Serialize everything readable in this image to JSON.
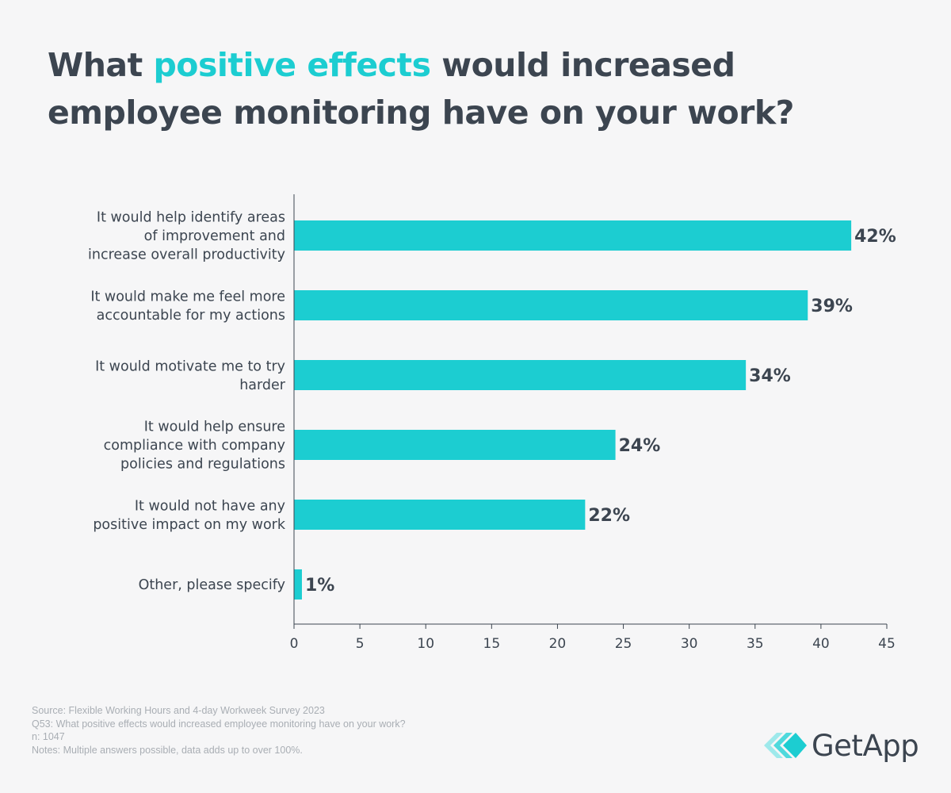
{
  "header": {
    "title_part1": "What ",
    "title_accent": "positive effects",
    "title_part2": " would increased employee monitoring have on your work?"
  },
  "chart_data": {
    "type": "bar",
    "orientation": "horizontal",
    "title": "What positive effects would increased employee monitoring have on your work?",
    "categories": [
      "It would help identify areas of improvement and increase overall productivity",
      "It would make me feel more accountable for my actions",
      "It would motivate me to try harder",
      "It would help ensure compliance with company policies and regulations",
      "It would not have any positive impact on my work",
      "Other, please specify"
    ],
    "category_lines": [
      [
        "It would help identify areas",
        "of improvement and",
        "increase overall productivity"
      ],
      [
        "It would make me feel more",
        "accountable for my actions"
      ],
      [
        "It would motivate me to try",
        "harder"
      ],
      [
        "It would help ensure",
        "compliance with company",
        "policies and regulations"
      ],
      [
        "It would not have any",
        "positive impact on my work"
      ],
      [
        "Other, please specify"
      ]
    ],
    "values": [
      42.3,
      39,
      34.3,
      24.4,
      22.1,
      0.6
    ],
    "data_labels": [
      "42%",
      "39%",
      "34%",
      "24%",
      "22%",
      "1%"
    ],
    "xlim": [
      0,
      45
    ],
    "xticks": [
      0,
      5,
      10,
      15,
      20,
      25,
      30,
      35,
      40,
      45
    ],
    "xlabel": "",
    "ylabel": "",
    "grid": false,
    "bar_color": "#1ccdd1"
  },
  "footer": {
    "source": "Source: Flexible Working Hours and 4-day Workweek Survey 2023",
    "question": "Q53: What positive effects would increased employee monitoring have on your work?",
    "sample": "n: 1047",
    "notes": "Notes: Multiple answers possible, data adds up to over 100%."
  },
  "brand": {
    "name": "GetApp",
    "logo_icon": "getapp-chevrons-icon"
  },
  "colors": {
    "accent": "#1ccdd1",
    "text": "#3c4550",
    "muted": "#a9aeb4",
    "background": "#f6f6f7"
  }
}
